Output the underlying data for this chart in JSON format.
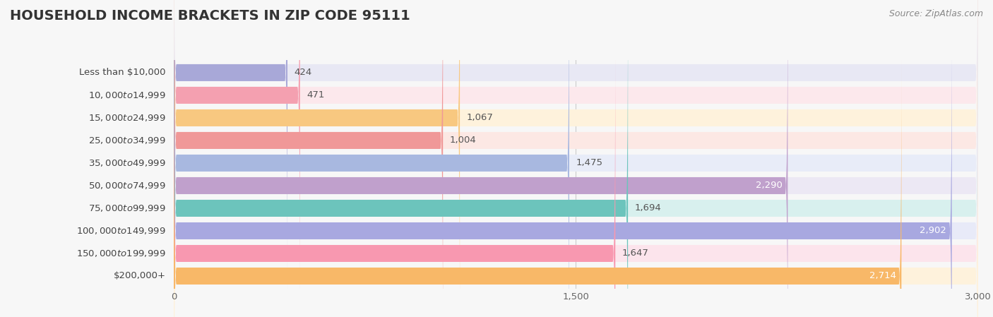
{
  "title": "HOUSEHOLD INCOME BRACKETS IN ZIP CODE 95111",
  "source": "Source: ZipAtlas.com",
  "categories": [
    "Less than $10,000",
    "$10,000 to $14,999",
    "$15,000 to $24,999",
    "$25,000 to $34,999",
    "$35,000 to $49,999",
    "$50,000 to $74,999",
    "$75,000 to $99,999",
    "$100,000 to $149,999",
    "$150,000 to $199,999",
    "$200,000+"
  ],
  "values": [
    424,
    471,
    1067,
    1004,
    1475,
    2290,
    1694,
    2902,
    1647,
    2714
  ],
  "bar_colors": [
    "#a8a8d8",
    "#f4a0b0",
    "#f8c880",
    "#f09898",
    "#a8b8e0",
    "#c0a0cc",
    "#6cc4bc",
    "#a8a8e0",
    "#f898b0",
    "#f8b868"
  ],
  "bar_bg_colors": [
    "#e8e8f4",
    "#fce8ec",
    "#fef2dc",
    "#fce8e4",
    "#e8ecf8",
    "#ece8f4",
    "#d8f0ee",
    "#e8eaf8",
    "#fce4ec",
    "#fef2dc"
  ],
  "xlim": [
    0,
    3000
  ],
  "xticks": [
    0,
    1500,
    3000
  ],
  "xtick_labels": [
    "0",
    "1,500",
    "3,000"
  ],
  "value_labels": [
    "424",
    "471",
    "1,067",
    "1,004",
    "1,475",
    "2,290",
    "1,694",
    "2,902",
    "1,647",
    "2,714"
  ],
  "label_white": [
    false,
    false,
    false,
    false,
    false,
    true,
    false,
    true,
    false,
    true
  ],
  "background_color": "#f7f7f7",
  "title_fontsize": 14,
  "label_fontsize": 9.5,
  "value_fontsize": 9.5,
  "source_fontsize": 9
}
